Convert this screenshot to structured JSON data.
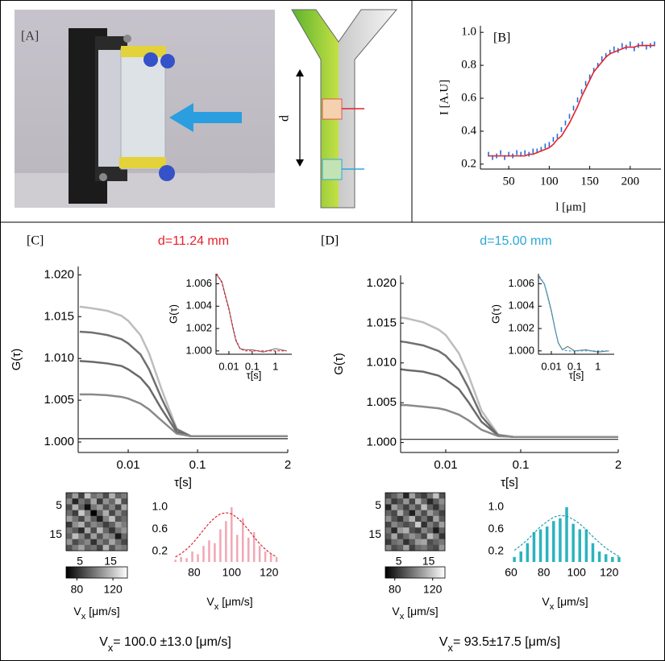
{
  "panel_labels": [
    "[A]",
    "[B]",
    "[C]",
    "[D]"
  ],
  "diagram": {
    "label": "d"
  },
  "results": [
    {
      "main": "V",
      "sub": "x",
      "rest": "= 100.0 ±13.0 [μm/s]"
    },
    {
      "main": "V",
      "sub": "x",
      "rest": "= 93.5±17.5 [μm/s]"
    }
  ],
  "chart_data": [
    {
      "type": "line",
      "xlabel": "l [μm]",
      "ylabel": "I [A.U]",
      "xlim": [
        15,
        238
      ],
      "ylim": [
        0.17,
        1.04
      ],
      "xticks": [
        50,
        100,
        150,
        200
      ],
      "yticks": [
        0.2,
        0.4,
        0.6,
        0.8,
        {
          "value": 1,
          "label": "1.0"
        }
      ],
      "x": [
        25,
        30,
        35,
        40,
        45,
        50,
        55,
        60,
        65,
        70,
        75,
        80,
        85,
        90,
        95,
        100,
        105,
        110,
        115,
        120,
        125,
        130,
        135,
        140,
        145,
        150,
        155,
        160,
        165,
        170,
        175,
        180,
        185,
        190,
        195,
        200,
        205,
        210,
        215,
        220,
        225,
        230
      ],
      "series": [
        {
          "color": "#1f6fd6",
          "mode": "markers",
          "values": [
            0.26,
            0.24,
            0.25,
            0.27,
            0.24,
            0.26,
            0.25,
            0.27,
            0.26,
            0.27,
            0.26,
            0.28,
            0.28,
            0.29,
            0.31,
            0.32,
            0.35,
            0.37,
            0.41,
            0.45,
            0.49,
            0.54,
            0.59,
            0.64,
            0.69,
            0.73,
            0.77,
            0.8,
            0.84,
            0.86,
            0.88,
            0.9,
            0.89,
            0.92,
            0.91,
            0.93,
            0.9,
            0.92,
            0.93,
            0.91,
            0.92,
            0.93
          ]
        },
        {
          "color": "#e8202a",
          "mode": "line",
          "values": [
            0.25,
            0.25,
            0.25,
            0.25,
            0.25,
            0.25,
            0.25,
            0.25,
            0.25,
            0.25,
            0.26,
            0.26,
            0.27,
            0.28,
            0.29,
            0.3,
            0.32,
            0.35,
            0.37,
            0.41,
            0.45,
            0.5,
            0.55,
            0.61,
            0.66,
            0.71,
            0.76,
            0.79,
            0.82,
            0.85,
            0.87,
            0.88,
            0.89,
            0.9,
            0.91,
            0.91,
            0.91,
            0.92,
            0.92,
            0.92,
            0.92,
            0.92
          ]
        }
      ]
    },
    {
      "type": "line",
      "title": "d=11.24 mm",
      "title_color": "#e8202a",
      "xlabel": "τ[s]",
      "ylabel": "G(τ)",
      "log_x": true,
      "xlim": [
        0.0019,
        2
      ],
      "ylim": [
        0.99875,
        1.021
      ],
      "xticks": [
        0.01,
        0.1,
        2
      ],
      "yticks": [
        {
          "value": 1,
          "label": "1.000"
        },
        1.005,
        {
          "value": 1.01,
          "label": "1.010"
        },
        1.015,
        {
          "value": 1.02,
          "label": "1.020"
        }
      ],
      "x": [
        0.002,
        0.003,
        0.005,
        0.008,
        0.01,
        0.015,
        0.02,
        0.03,
        0.05,
        0.08,
        0.1,
        0.2,
        0.5,
        1,
        2
      ],
      "series": [
        {
          "color": "#bdbdbd",
          "mode": "line",
          "values": [
            1.0162,
            1.016,
            1.0157,
            1.0151,
            1.0145,
            1.0128,
            1.0106,
            1.0064,
            1.0016,
            1.0007,
            1.0007,
            1.0007,
            1.0007,
            1.0007,
            1.0007
          ]
        },
        {
          "color": "#707070",
          "mode": "line",
          "values": [
            1.0132,
            1.0131,
            1.0128,
            1.0123,
            1.0118,
            1.0105,
            1.0087,
            1.0053,
            1.0015,
            1.0007,
            1.0007,
            1.0007,
            1.0007,
            1.0007,
            1.0007
          ]
        },
        {
          "color": "#6a6a6a",
          "mode": "line",
          "values": [
            1.0097,
            1.0096,
            1.0094,
            1.0091,
            1.0087,
            1.0077,
            1.0065,
            1.004,
            1.0012,
            1.0007,
            1.0007,
            1.0007,
            1.0007,
            1.0007,
            1.0007
          ]
        },
        {
          "color": "#8a8a8a",
          "mode": "line",
          "values": [
            1.0057,
            1.0057,
            1.0056,
            1.0054,
            1.0052,
            1.0046,
            1.0039,
            1.0026,
            1.001,
            1.0007,
            1.0007,
            1.0007,
            1.0007,
            1.0007,
            1.0007
          ]
        }
      ],
      "reference_line": 1.0004
    },
    {
      "type": "line",
      "xlabel": "τ[s]",
      "ylabel": "G(τ)",
      "log_x": true,
      "xlim": [
        0.0028,
        5
      ],
      "ylim": [
        0.9997,
        1.0069
      ],
      "xticks": [
        0.01,
        0.1,
        1
      ],
      "yticks": [
        {
          "value": 1,
          "label": "1.000"
        },
        1.002,
        1.004,
        1.006
      ],
      "x": [
        0.003,
        0.005,
        0.007,
        0.01,
        0.015,
        0.02,
        0.03,
        0.05,
        0.1,
        0.3,
        1,
        3
      ],
      "series": [
        {
          "color": "#777777",
          "mode": "line",
          "values": [
            1.0068,
            1.0062,
            1.005,
            1.0038,
            1.002,
            1.0009,
            1.0002,
            1.0001,
            1.0001,
            0.9999,
            1.0002,
            1.0
          ]
        },
        {
          "color": "#e8202a",
          "mode": "line",
          "dash": true,
          "values": [
            1.0069,
            1.0061,
            1.0049,
            1.0037,
            1.0021,
            1.001,
            1.0002,
            1.0,
            1.0,
            1.0,
            1.0,
            1.0
          ]
        }
      ]
    },
    {
      "type": "heatmap",
      "xlim": [
        0.5,
        20.5
      ],
      "ylim": [
        0.5,
        20.5
      ],
      "y_reversed": true,
      "xticks": [
        5,
        15
      ],
      "yticks": [
        5,
        15
      ],
      "xlabel": {
        "main": "V",
        "sub": "x",
        "rest": " [μm/s]"
      },
      "colorbar": {
        "lim": [
          68,
          136
        ],
        "ticks": [
          80,
          120
        ]
      },
      "z": [
        [
          92,
          110,
          85,
          120,
          98,
          104,
          88,
          115,
          95,
          101
        ],
        [
          105,
          78,
          99,
          90,
          112,
          83,
          107,
          96,
          118,
          89
        ],
        [
          88,
          116,
          94,
          72,
          100,
          109,
          91,
          103,
          86,
          113
        ],
        [
          97,
          84,
          121,
          101,
          68,
          95,
          114,
          87,
          106,
          92
        ],
        [
          111,
          99,
          87,
          108,
          93,
          76,
          102,
          119,
          90,
          97
        ],
        [
          83,
          106,
          115,
          91,
          104,
          98,
          85,
          94,
          110,
          101
        ],
        [
          100,
          92,
          79,
          113,
          88,
          117,
          96,
          82,
          99,
          108
        ],
        [
          94,
          119,
          103,
          86,
          110,
          90,
          107,
          101,
          75,
          96
        ],
        [
          108,
          88,
          97,
          104,
          81,
          102,
          93,
          112,
          98,
          87
        ],
        [
          90,
          101,
          112,
          95,
          99,
          86,
          116,
          91,
          104,
          100
        ]
      ]
    },
    {
      "type": "line",
      "xlabel": {
        "main": "V",
        "sub": "x",
        "rest": " [μm/s]"
      },
      "xlim": [
        68,
        130
      ],
      "ylim": [
        0.01,
        1.145
      ],
      "xticks": [
        80,
        100,
        120
      ],
      "yticks": [
        0.2,
        0.6,
        {
          "value": 1,
          "label": "1.0"
        }
      ],
      "x": [
        70,
        73,
        76,
        79,
        82,
        85,
        88,
        91,
        94,
        97,
        100,
        103,
        106,
        109,
        112,
        115,
        118,
        121,
        124
      ],
      "series": [
        {
          "color": "#f2a7b4",
          "mode": "bar",
          "values": [
            0.05,
            0.1,
            0.08,
            0.2,
            0.15,
            0.3,
            0.4,
            0.35,
            0.6,
            0.75,
            1.0,
            0.5,
            0.8,
            0.45,
            0.55,
            0.3,
            0.2,
            0.15,
            0.1
          ]
        },
        {
          "color": "#d9262f",
          "mode": "line",
          "dash": true,
          "values": [
            0.1,
            0.16,
            0.24,
            0.34,
            0.46,
            0.59,
            0.71,
            0.81,
            0.88,
            0.9,
            0.88,
            0.81,
            0.71,
            0.59,
            0.46,
            0.34,
            0.24,
            0.16,
            0.1
          ]
        }
      ]
    },
    {
      "type": "line",
      "title": "d=15.00 mm",
      "title_color": "#2ba8d8",
      "xlabel": "τ[s]",
      "ylabel": "G(τ)",
      "log_x": true,
      "xlim": [
        0.0025,
        2
      ],
      "ylim": [
        0.99875,
        1.021
      ],
      "xticks": [
        0.01,
        0.1,
        2
      ],
      "yticks": [
        {
          "value": 1,
          "label": "1.000"
        },
        1.005,
        {
          "value": 1.01,
          "label": "1.010"
        },
        1.015,
        {
          "value": 1.02,
          "label": "1.020"
        }
      ],
      "x": [
        0.0025,
        0.003,
        0.005,
        0.008,
        0.01,
        0.015,
        0.02,
        0.03,
        0.05,
        0.08,
        0.1,
        0.2,
        0.5,
        1,
        2
      ],
      "series": [
        {
          "color": "#bdbdbd",
          "mode": "line",
          "values": [
            1.0157,
            1.0156,
            1.0151,
            1.0142,
            1.0135,
            1.0112,
            1.0085,
            1.004,
            1.001,
            1.0007,
            1.0007,
            1.0007,
            1.0007,
            1.0007,
            1.0007
          ]
        },
        {
          "color": "#707070",
          "mode": "line",
          "values": [
            1.0127,
            1.0126,
            1.0122,
            1.0115,
            1.0109,
            1.0091,
            1.0069,
            1.0033,
            1.0009,
            1.0007,
            1.0007,
            1.0007,
            1.0007,
            1.0007,
            1.0007
          ]
        },
        {
          "color": "#6a6a6a",
          "mode": "line",
          "values": [
            1.0092,
            1.0091,
            1.0089,
            1.0084,
            1.0079,
            1.0067,
            1.0051,
            1.0026,
            1.0009,
            1.0007,
            1.0007,
            1.0007,
            1.0007,
            1.0007,
            1.0007
          ]
        },
        {
          "color": "#8a8a8a",
          "mode": "line",
          "values": [
            1.0047,
            1.0047,
            1.0045,
            1.0043,
            1.0041,
            1.0035,
            1.0028,
            1.0016,
            1.0008,
            1.0007,
            1.0007,
            1.0007,
            1.0007,
            1.0007,
            1.0007
          ]
        }
      ],
      "reference_line": 1.0004
    },
    {
      "type": "line",
      "xlabel": "τ[s]",
      "ylabel": "G(τ)",
      "log_x": true,
      "xlim": [
        0.0028,
        5
      ],
      "ylim": [
        0.9997,
        1.0069
      ],
      "xticks": [
        0.01,
        0.1,
        1
      ],
      "yticks": [
        {
          "value": 1,
          "label": "1.000"
        },
        1.002,
        1.004,
        1.006
      ],
      "x": [
        0.003,
        0.005,
        0.007,
        0.01,
        0.015,
        0.02,
        0.03,
        0.05,
        0.1,
        0.3,
        1,
        3
      ],
      "series": [
        {
          "color": "#777777",
          "mode": "line",
          "values": [
            1.0066,
            1.006,
            1.0049,
            1.0036,
            1.0018,
            1.0007,
            1.0001,
            1.0004,
            1.0,
            1.0001,
            0.9999,
            1.0
          ]
        },
        {
          "color": "#2ba8d8",
          "mode": "line",
          "dash": true,
          "values": [
            1.0067,
            1.006,
            1.0048,
            1.0035,
            1.0018,
            1.0007,
            1.0001,
            1.0,
            1.0,
            1.0,
            1.0,
            1.0
          ]
        }
      ]
    },
    {
      "type": "heatmap",
      "xlim": [
        0.5,
        20.5
      ],
      "ylim": [
        0.5,
        20.5
      ],
      "y_reversed": true,
      "xticks": [
        5,
        15
      ],
      "yticks": [
        5,
        15
      ],
      "xlabel": {
        "main": "V",
        "sub": "x",
        "rest": " [μm/s]"
      },
      "colorbar": {
        "lim": [
          70,
          133
        ],
        "ticks": [
          80,
          120
        ]
      },
      "z": [
        [
          88,
          95,
          104,
          79,
          110,
          92,
          85,
          99,
          118,
          90
        ],
        [
          102,
          84,
          91,
          107,
          87,
          113,
          96,
          80,
          93,
          105
        ],
        [
          79,
          109,
          98,
          86,
          101,
          90,
          117,
          94,
          83,
          99
        ],
        [
          95,
          88,
          112,
          93,
          78,
          104,
          89,
          108,
          97,
          86
        ],
        [
          106,
          91,
          83,
          100,
          115,
          87,
          98,
          84,
          110,
          92
        ],
        [
          87,
          103,
          96,
          89,
          94,
          120,
          82,
          101,
          91,
          109
        ],
        [
          99,
          80,
          108,
          114,
          90,
          85,
          103,
          95,
          77,
          94
        ],
        [
          92,
          111,
          87,
          97,
          106,
          99,
          88,
          116,
          102,
          83
        ],
        [
          84,
          97,
          101,
          82,
          93,
          108,
          111,
          89,
          95,
          100
        ],
        [
          103,
          89,
          94,
          110,
          86,
          96,
          100,
          92,
          88,
          107
        ]
      ]
    },
    {
      "type": "line",
      "xlabel": {
        "main": "V",
        "sub": "x",
        "rest": " [μm/s]"
      },
      "xlim": [
        58,
        128
      ],
      "ylim": [
        0.01,
        1.145
      ],
      "xticks": [
        60,
        80,
        100,
        120
      ],
      "yticks": [
        0.2,
        0.6,
        {
          "value": 1,
          "label": "1.0"
        }
      ],
      "x": [
        62,
        66,
        70,
        74,
        78,
        82,
        86,
        90,
        94,
        98,
        102,
        106,
        110,
        114,
        118,
        122,
        126
      ],
      "series": [
        {
          "color": "#2bb3c0",
          "mode": "bar",
          "values": [
            0.1,
            0.2,
            0.35,
            0.55,
            0.6,
            0.65,
            0.75,
            0.8,
            1.0,
            0.7,
            0.6,
            0.6,
            0.35,
            0.2,
            0.15,
            0.1,
            0.1
          ]
        },
        {
          "color": "#1aa0b4",
          "mode": "line",
          "dash": true,
          "values": [
            0.22,
            0.31,
            0.41,
            0.53,
            0.65,
            0.74,
            0.82,
            0.85,
            0.84,
            0.78,
            0.7,
            0.59,
            0.47,
            0.36,
            0.26,
            0.18,
            0.11
          ]
        }
      ]
    }
  ]
}
